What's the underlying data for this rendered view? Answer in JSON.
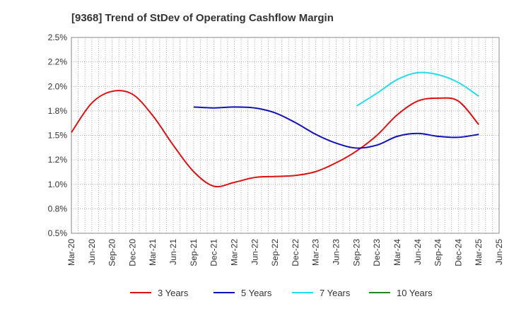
{
  "chart_data": {
    "type": "line",
    "title": "[9368]  Trend of StDev of Operating Cashflow Margin",
    "xlabel": "",
    "ylabel": "",
    "x_ticks": [
      "Mar-20",
      "Jun-20",
      "Sep-20",
      "Dec-20",
      "Mar-21",
      "Jun-21",
      "Sep-21",
      "Dec-21",
      "Mar-22",
      "Jun-22",
      "Sep-22",
      "Dec-22",
      "Mar-23",
      "Jun-23",
      "Sep-23",
      "Dec-23",
      "Mar-24",
      "Jun-24",
      "Sep-24",
      "Dec-24",
      "Mar-25",
      "Jun-25"
    ],
    "y_ticks": [
      "0.5%",
      "0.8%",
      "1.0%",
      "1.2%",
      "1.5%",
      "1.8%",
      "2.0%",
      "2.2%",
      "2.5%"
    ],
    "ylim": [
      0.5,
      2.5
    ],
    "grid": true,
    "legend_position": "bottom",
    "series": [
      {
        "name": "3 Years",
        "color": "#dd1111",
        "x": [
          "Mar-20",
          "Jun-20",
          "Sep-20",
          "Dec-20",
          "Mar-21",
          "Jun-21",
          "Sep-21",
          "Dec-21",
          "Mar-22",
          "Jun-22",
          "Sep-22",
          "Dec-22",
          "Mar-23",
          "Jun-23",
          "Sep-23",
          "Dec-23",
          "Mar-24",
          "Jun-24",
          "Sep-24",
          "Dec-24",
          "Mar-25"
        ],
        "values": [
          1.53,
          1.83,
          1.95,
          1.92,
          1.7,
          1.4,
          1.13,
          0.98,
          1.02,
          1.07,
          1.08,
          1.09,
          1.13,
          1.22,
          1.34,
          1.5,
          1.71,
          1.85,
          1.88,
          1.85,
          1.61
        ]
      },
      {
        "name": "5 Years",
        "color": "#1111bb",
        "x": [
          "Sep-21",
          "Dec-21",
          "Mar-22",
          "Jun-22",
          "Sep-22",
          "Dec-22",
          "Mar-23",
          "Jun-23",
          "Sep-23",
          "Dec-23",
          "Mar-24",
          "Jun-24",
          "Sep-24",
          "Dec-24",
          "Mar-25"
        ],
        "values": [
          1.79,
          1.78,
          1.79,
          1.78,
          1.73,
          1.63,
          1.51,
          1.42,
          1.37,
          1.4,
          1.49,
          1.52,
          1.49,
          1.48,
          1.51
        ]
      },
      {
        "name": "7 Years",
        "color": "#22ddee",
        "x": [
          "Sep-23",
          "Dec-23",
          "Mar-24",
          "Jun-24",
          "Sep-24",
          "Dec-24",
          "Mar-25"
        ],
        "values": [
          1.8,
          1.93,
          2.07,
          2.14,
          2.12,
          2.04,
          1.9
        ]
      },
      {
        "name": "10 Years",
        "color": "#228822",
        "x": [],
        "values": []
      }
    ]
  }
}
